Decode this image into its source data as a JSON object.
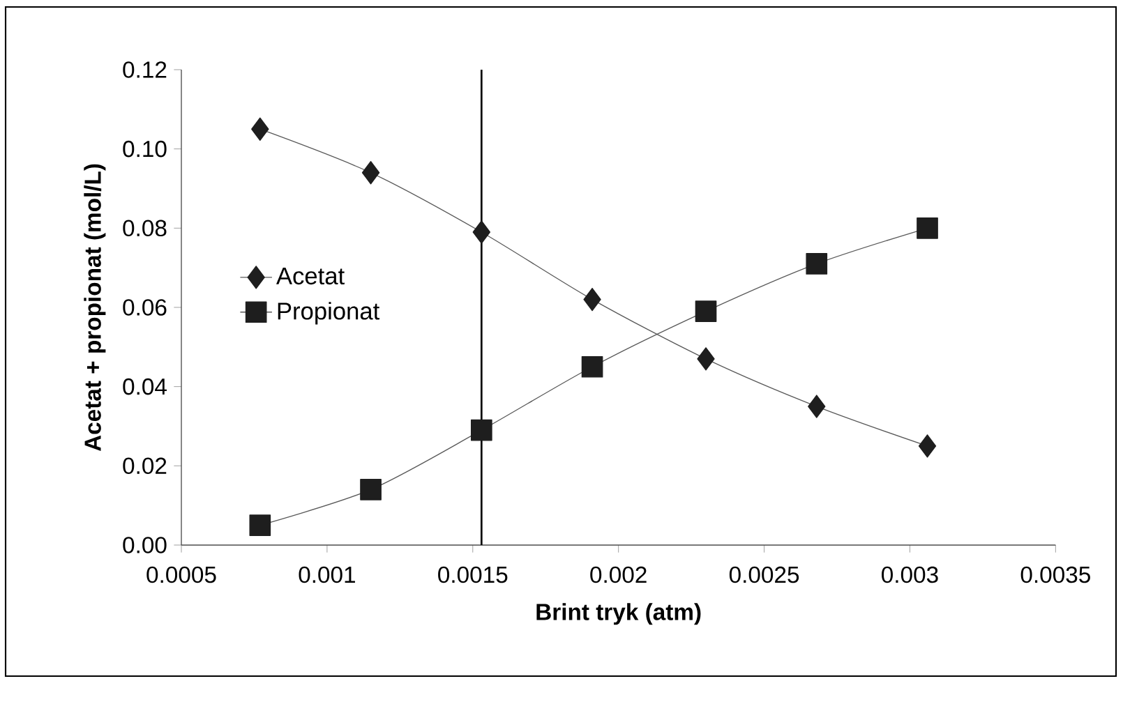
{
  "chart_data": {
    "type": "line",
    "xlabel": "Brint tryk (atm)",
    "ylabel": "Acetat + propionat  (mol/L)",
    "x": [
      0.00077,
      0.00115,
      0.00153,
      0.00191,
      0.0023,
      0.00268,
      0.00306
    ],
    "series": [
      {
        "name": "Acetat",
        "color": "#1e1e1e",
        "marker": "diamond",
        "values": [
          0.105,
          0.094,
          0.079,
          0.062,
          0.047,
          0.035,
          0.025
        ]
      },
      {
        "name": "Propionat",
        "color": "#1e1e1e",
        "marker": "square",
        "values": [
          0.005,
          0.014,
          0.029,
          0.045,
          0.059,
          0.071,
          0.08
        ]
      }
    ],
    "xlim": [
      0.0005,
      0.0035
    ],
    "xticks": [
      0.0005,
      0.001,
      0.0015,
      0.002,
      0.0025,
      0.003,
      0.0035
    ],
    "ylim": [
      0,
      0.12
    ],
    "yticks": [
      {
        "value": 0,
        "label": "0.00"
      },
      {
        "value": 0.02,
        "label": "0.02"
      },
      {
        "value": 0.04,
        "label": "0.04"
      },
      {
        "value": 0.06,
        "label": "0.06"
      },
      {
        "value": 0.08,
        "label": "0.08"
      },
      {
        "value": 0.1,
        "label": "0.10"
      },
      {
        "value": 0.12,
        "label": "0.12"
      }
    ],
    "ref_lines": [
      {
        "axis": "x",
        "value": 0.00153,
        "color": "#000000"
      }
    ],
    "grid": false,
    "legend": "left"
  }
}
